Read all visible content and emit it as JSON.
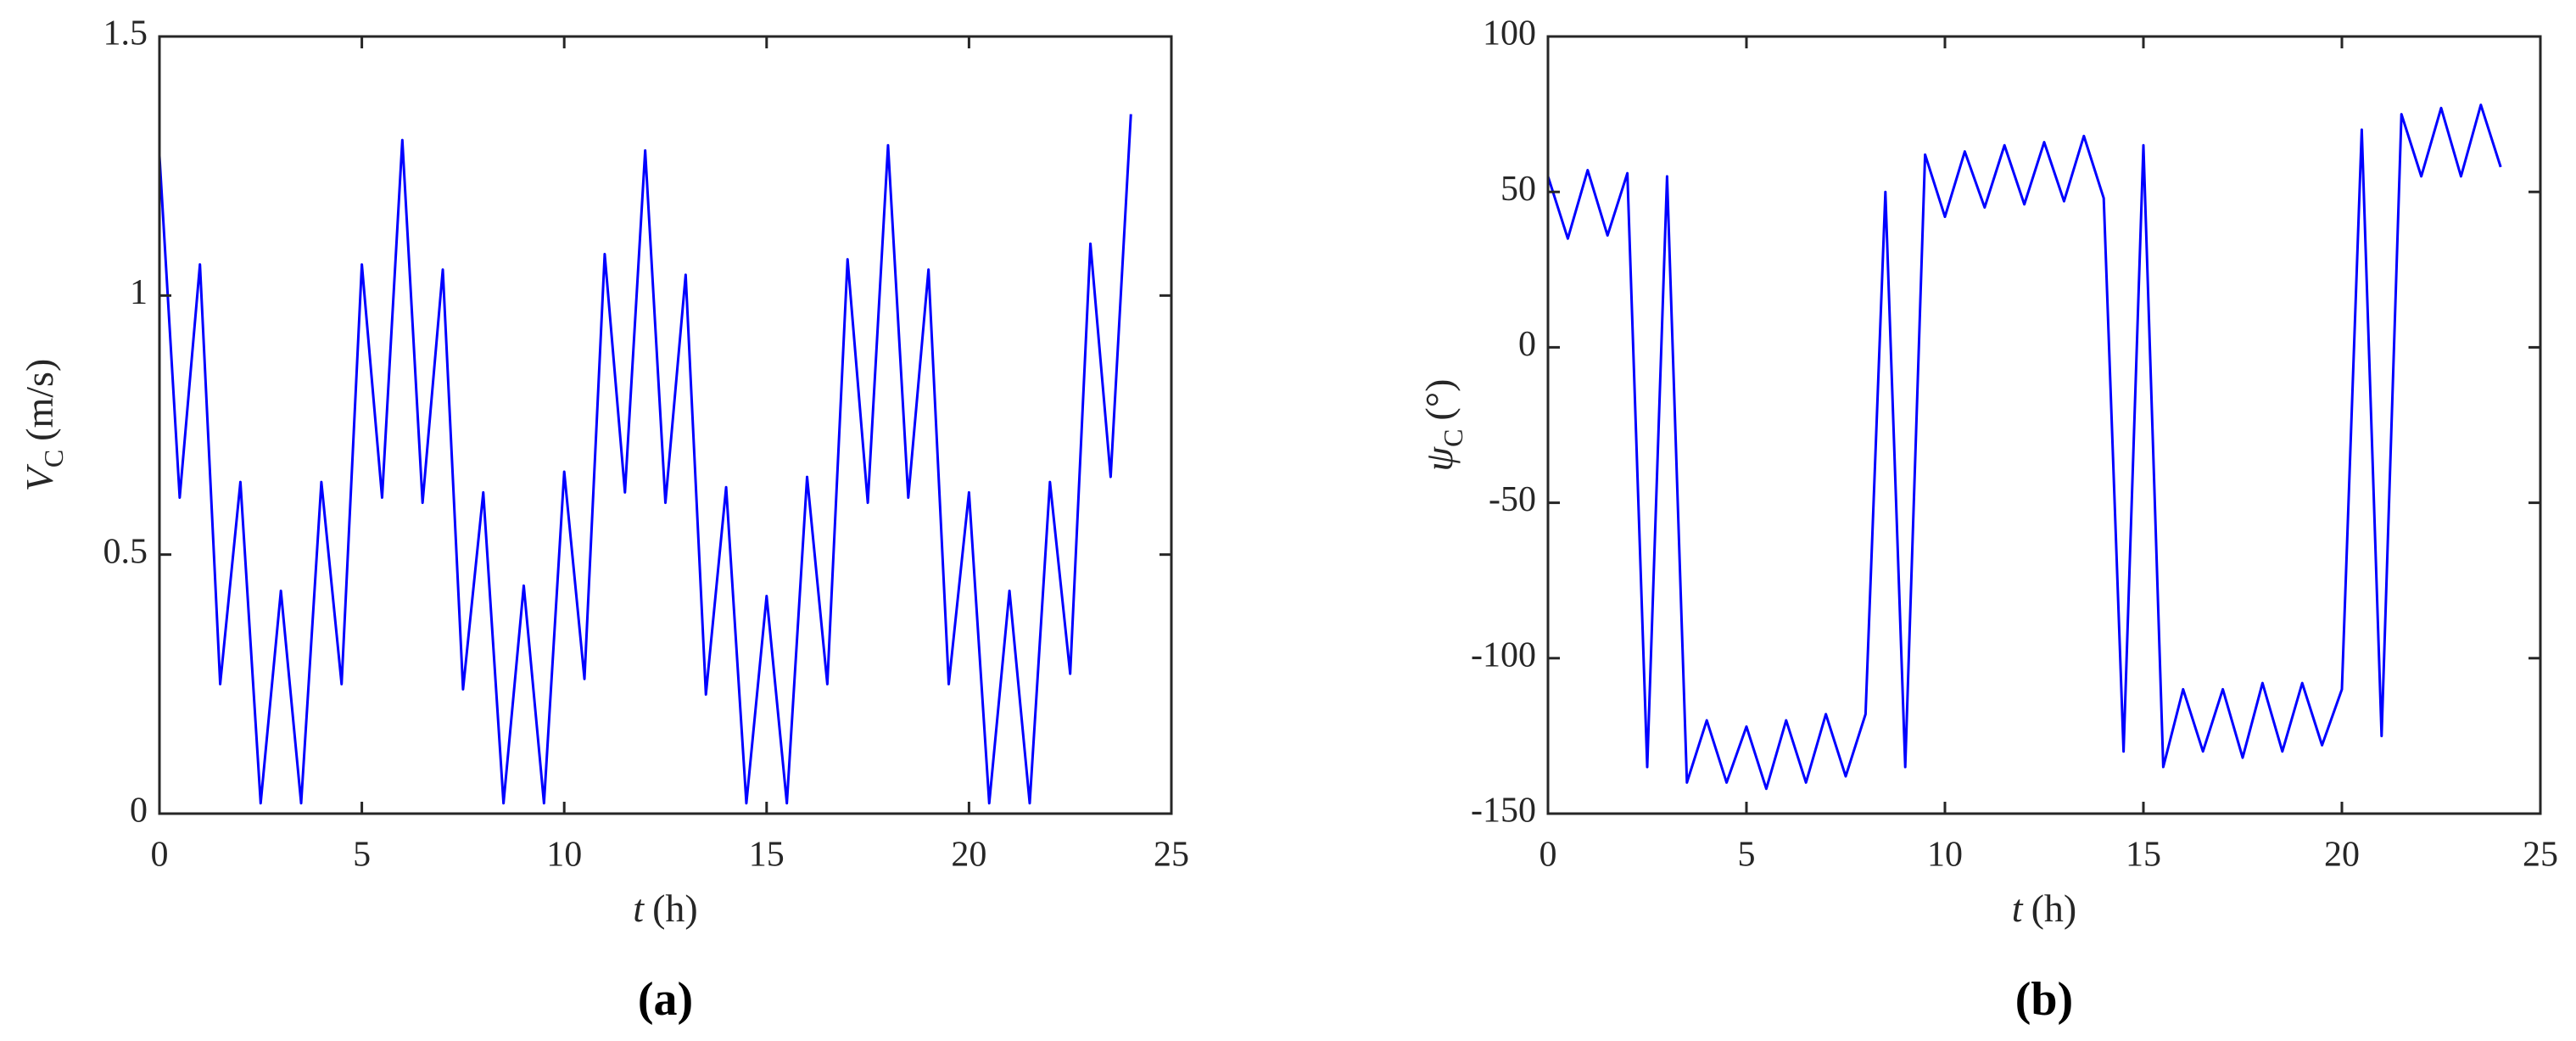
{
  "chart_data": [
    {
      "type": "line",
      "color": "#0000ff",
      "xlabel": {
        "symbol": "t",
        "unit": "(h)"
      },
      "ylabel": {
        "symbol": "V",
        "subscript": "C",
        "unit": "(m/s)"
      },
      "panel_label": "(a)",
      "xlim": [
        0,
        25
      ],
      "xticks": [
        0,
        5,
        10,
        15,
        20,
        25
      ],
      "ylim": [
        0,
        1.5
      ],
      "yticks": [
        0,
        0.5,
        1,
        1.5
      ],
      "x": [
        0,
        0.5,
        1,
        1.5,
        2,
        2.5,
        3,
        3.5,
        4,
        4.5,
        5,
        5.5,
        6,
        6.5,
        7,
        7.5,
        8,
        8.5,
        9,
        9.5,
        10,
        10.5,
        11,
        11.5,
        12,
        12.5,
        13,
        13.5,
        14,
        14.5,
        15,
        15.5,
        16,
        16.5,
        17,
        17.5,
        18,
        18.5,
        19,
        19.5,
        20,
        20.5,
        21,
        21.5,
        22,
        22.5,
        23,
        23.5,
        24
      ],
      "values": [
        1.27,
        0.61,
        1.06,
        0.25,
        0.64,
        0.02,
        0.43,
        0.02,
        0.64,
        0.25,
        1.06,
        0.61,
        1.3,
        0.6,
        1.05,
        0.24,
        0.62,
        0.02,
        0.44,
        0.02,
        0.66,
        0.26,
        1.08,
        0.62,
        1.28,
        0.6,
        1.04,
        0.23,
        0.63,
        0.02,
        0.42,
        0.02,
        0.65,
        0.25,
        1.07,
        0.6,
        1.29,
        0.61,
        1.05,
        0.25,
        0.62,
        0.02,
        0.43,
        0.02,
        0.64,
        0.27,
        1.1,
        0.65,
        1.35
      ]
    },
    {
      "type": "line",
      "color": "#0000ff",
      "xlabel": {
        "symbol": "t",
        "unit": "(h)"
      },
      "ylabel": {
        "symbol": "ψ",
        "subscript": "C",
        "unit": "(°)"
      },
      "panel_label": "(b)",
      "xlim": [
        0,
        25
      ],
      "xticks": [
        0,
        5,
        10,
        15,
        20,
        25
      ],
      "ylim": [
        -150,
        100
      ],
      "yticks": [
        -150,
        -100,
        -50,
        0,
        50,
        100
      ],
      "x": [
        0,
        0.5,
        1,
        1.5,
        2,
        2.5,
        3,
        3.5,
        4,
        4.5,
        5,
        5.5,
        6,
        6.5,
        7,
        7.5,
        8,
        8.5,
        9,
        9.5,
        10,
        10.5,
        11,
        11.5,
        12,
        12.5,
        13,
        13.5,
        14,
        14.5,
        15,
        15.5,
        16,
        16.5,
        17,
        17.5,
        18,
        18.5,
        19,
        19.5,
        20,
        20.5,
        21,
        21.5,
        22,
        22.5,
        23,
        23.5,
        24
      ],
      "values": [
        55,
        35,
        57,
        36,
        56,
        -135,
        55,
        -140,
        -120,
        -140,
        -122,
        -142,
        -120,
        -140,
        -118,
        -138,
        -118,
        50,
        -135,
        62,
        42,
        63,
        45,
        65,
        46,
        66,
        47,
        68,
        48,
        -130,
        65,
        -135,
        -110,
        -130,
        -110,
        -132,
        -108,
        -130,
        -108,
        -128,
        -110,
        70,
        -125,
        75,
        55,
        77,
        55,
        78,
        58
      ]
    }
  ]
}
